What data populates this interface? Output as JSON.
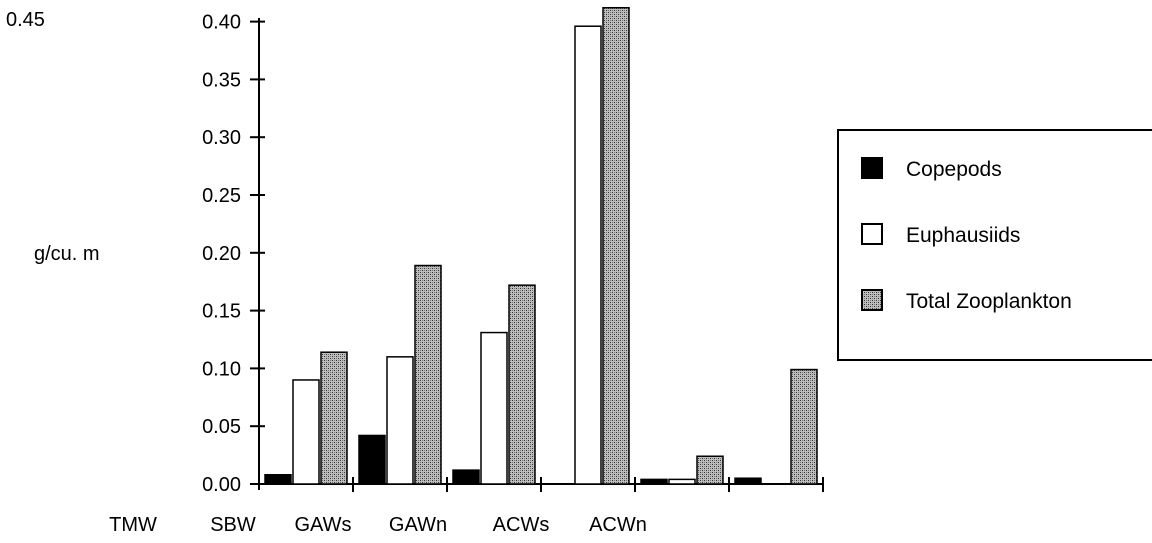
{
  "chart_data": {
    "type": "bar",
    "ylabel": "g/cu. m",
    "ylim": [
      0,
      0.45
    ],
    "yticks": [
      "0.00",
      "0.05",
      "0.10",
      "0.15",
      "0.20",
      "0.25",
      "0.30",
      "0.35",
      "0.40",
      "0.45"
    ],
    "categories": [
      "TMW",
      "SBW",
      "GAWs",
      "GAWn",
      "ACWs",
      "ACWn"
    ],
    "series": [
      {
        "name": "Copepods",
        "fill": "solid",
        "color": "#000000",
        "values": [
          0.008,
          0.042,
          0.012,
          0.0,
          0.004,
          0.005
        ]
      },
      {
        "name": "Euphausiids",
        "fill": "hollow",
        "color": "#ffffff",
        "values": [
          0.09,
          0.11,
          0.131,
          0.396,
          0.004,
          0.0
        ]
      },
      {
        "name": "Total Zooplankton",
        "fill": "stipple",
        "color": "#9a9a9a",
        "values": [
          0.114,
          0.189,
          0.172,
          0.412,
          0.024,
          0.099
        ]
      }
    ],
    "legend_position": "right",
    "grid": false
  }
}
